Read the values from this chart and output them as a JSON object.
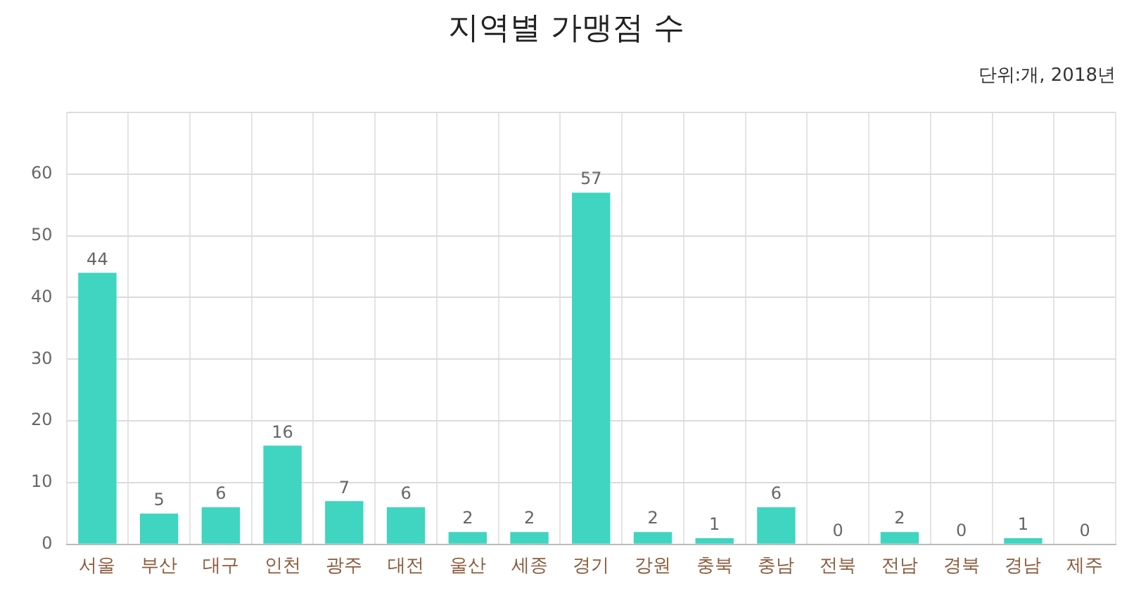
{
  "chart_data": {
    "type": "bar",
    "title": "지역별 가맹점 수",
    "subtitle": "단위:개, 2018년",
    "categories": [
      "서울",
      "부산",
      "대구",
      "인천",
      "광주",
      "대전",
      "울산",
      "세종",
      "경기",
      "강원",
      "충북",
      "충남",
      "전북",
      "전남",
      "경북",
      "경남",
      "제주"
    ],
    "values": [
      44,
      5,
      6,
      16,
      7,
      6,
      2,
      2,
      57,
      2,
      1,
      6,
      0,
      2,
      0,
      1,
      0
    ],
    "color": "#3fd5c0",
    "ylim": [
      0,
      70
    ],
    "yticks": [
      0,
      10,
      20,
      30,
      40,
      50,
      60,
      {
        "value": 70,
        "label": null
      }
    ],
    "grid": true,
    "legend": false,
    "data_labels": true
  }
}
